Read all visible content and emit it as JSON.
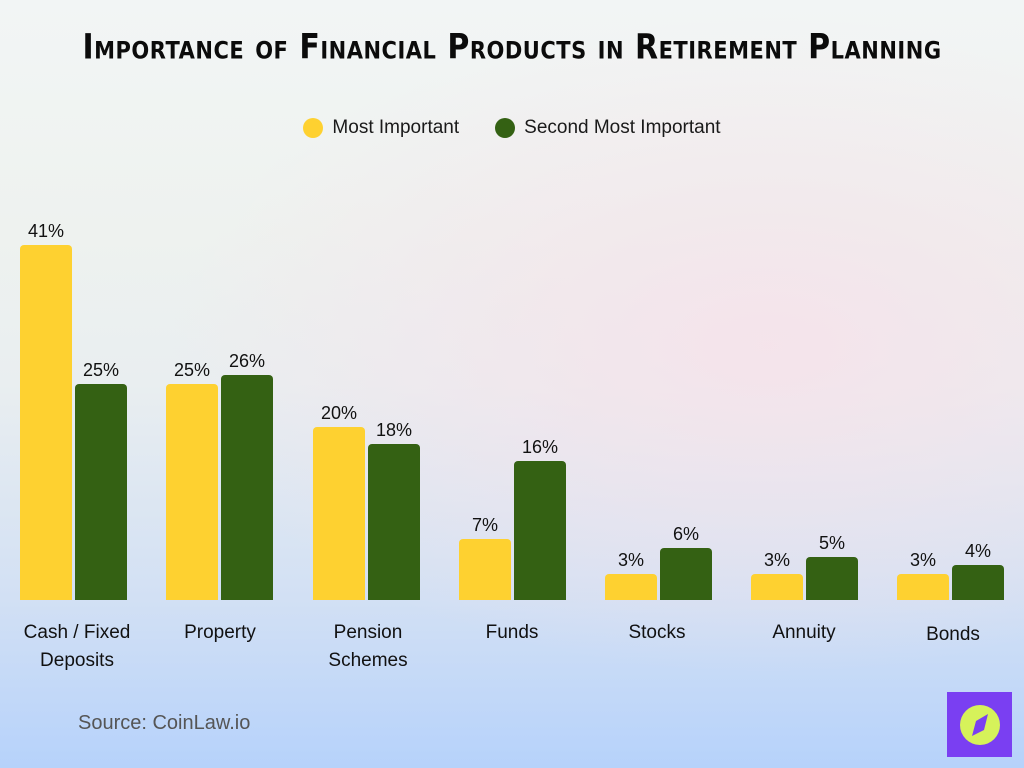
{
  "title": "Importance of Financial Products in Retirement Planning",
  "legend": [
    {
      "label": "Most Important",
      "color": "#fed130"
    },
    {
      "label": "Second Most Important",
      "color": "#346113"
    }
  ],
  "source": "Source: CoinLaw.io",
  "logo": {
    "icon": "compass-icon",
    "bg": "#7a3ff2",
    "fg": "#d6f25a"
  },
  "chart_data": {
    "type": "bar",
    "title": "Importance of Financial Products in Retirement Planning",
    "categories": [
      "Cash / Fixed Deposits",
      "Property",
      "Pension Schemes",
      "Funds",
      "Stocks",
      "Annuity",
      "Bonds"
    ],
    "series": [
      {
        "name": "Most Important",
        "color": "#fed130",
        "values": [
          41,
          25,
          20,
          7,
          3,
          3,
          3
        ]
      },
      {
        "name": "Second Most Important",
        "color": "#346113",
        "values": [
          25,
          26,
          18,
          16,
          6,
          5,
          4
        ]
      }
    ],
    "value_labels": {
      "Most Important": [
        "41%",
        "25%",
        "20%",
        "7%",
        "3%",
        "3%",
        "3%"
      ],
      "Second Most Important": [
        "25%",
        "26%",
        "18%",
        "16%",
        "6%",
        "5%",
        "4%"
      ]
    },
    "xlabel": "",
    "ylabel": "",
    "unit": "%",
    "grid": false,
    "legend_position": "top",
    "ylim": [
      0,
      45
    ]
  },
  "labels": {
    "cat0_line1": "Cash / Fixed",
    "cat0_line2": "Deposits",
    "cat1_line1": "Property",
    "cat2_line1": "Pension",
    "cat2_line2": "Schemes",
    "cat3_line1": "Funds",
    "cat4_line1": "Stocks",
    "cat5_line1": "Annuity",
    "cat6_line1": "Bonds"
  }
}
